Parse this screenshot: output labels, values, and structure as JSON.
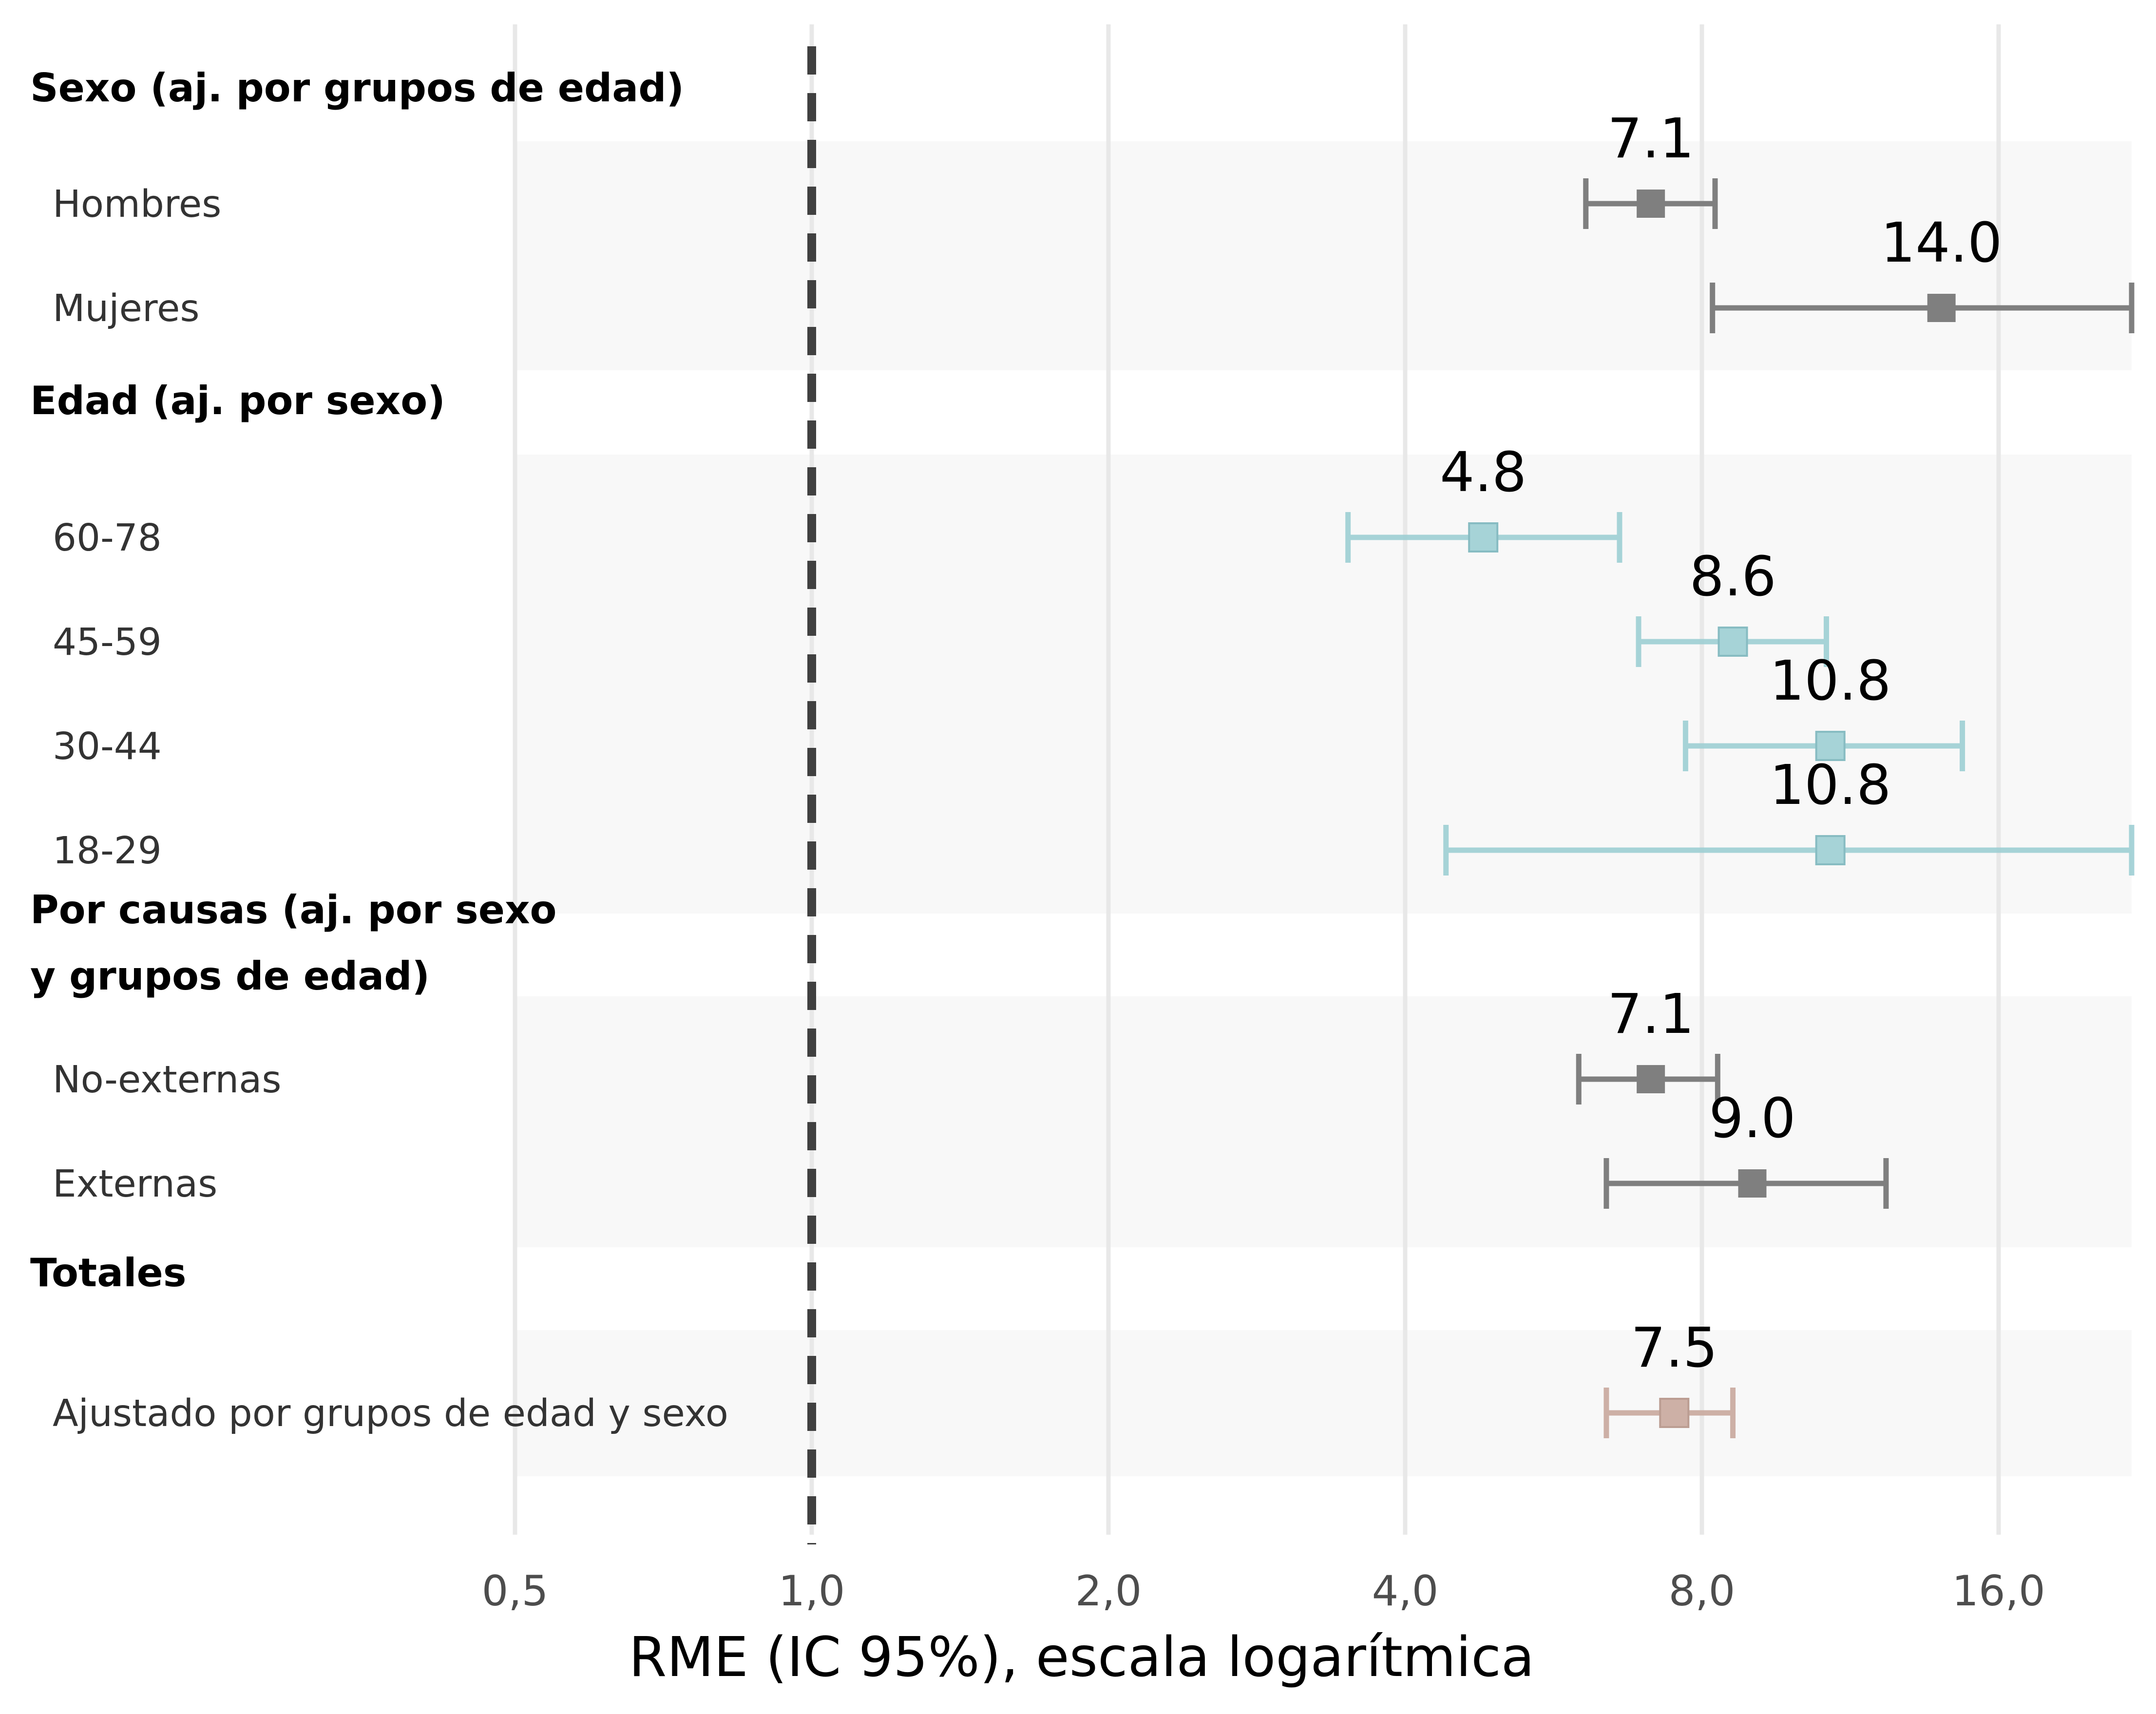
{
  "chart_data": {
    "type": "forest",
    "scale": "log2",
    "xlabel": "RME (IC 95%), escala logarítmica",
    "xlim": [
      0.5,
      23
    ],
    "ticks": [
      {
        "value": 0.5,
        "label": "0,5"
      },
      {
        "value": 1,
        "label": "1,0"
      },
      {
        "value": 2,
        "label": "2,0"
      },
      {
        "value": 4,
        "label": "4,0"
      },
      {
        "value": 8,
        "label": "8,0"
      },
      {
        "value": 16,
        "label": "16,0"
      }
    ],
    "reference_line": 1,
    "colors": {
      "grey": "#7f7f7f",
      "teal": "#9ecfd4",
      "rose": "#c9a99e",
      "band": "#f8f8f8",
      "grid": "#e8e8e8",
      "refline": "#404040"
    },
    "sections": [
      {
        "title_lines": [
          "Sexo (aj. por grupos de edad)"
        ],
        "rows": [
          {
            "label": "Hombres",
            "estimate": 7.1,
            "lower": 6.1,
            "upper": 8.25,
            "value_label": "7.1",
            "color": "grey"
          },
          {
            "label": "Mujeres",
            "estimate": 14.0,
            "lower": 8.2,
            "upper": 23.0,
            "value_label": "14.0",
            "color": "grey"
          }
        ]
      },
      {
        "title_lines": [
          "Edad (aj. por sexo)"
        ],
        "rows": [
          {
            "label": "60-78",
            "estimate": 4.8,
            "lower": 3.5,
            "upper": 6.6,
            "value_label": "4.8",
            "color": "teal"
          },
          {
            "label": "45-59",
            "estimate": 8.6,
            "lower": 6.9,
            "upper": 10.7,
            "value_label": "8.6",
            "color": "teal"
          },
          {
            "label": "30-44",
            "estimate": 10.8,
            "lower": 7.7,
            "upper": 14.7,
            "value_label": "10.8",
            "color": "teal"
          },
          {
            "label": "18-29",
            "estimate": 10.8,
            "lower": 4.4,
            "upper": 23.0,
            "value_label": "10.8",
            "color": "teal"
          }
        ]
      },
      {
        "title_lines": [
          "Por causas (aj. por sexo",
          "y grupos de edad)"
        ],
        "rows": [
          {
            "label": "No-externas",
            "estimate": 7.1,
            "lower": 6.0,
            "upper": 8.3,
            "value_label": "7.1",
            "color": "grey"
          },
          {
            "label": "Externas",
            "estimate": 9.0,
            "lower": 6.4,
            "upper": 12.3,
            "value_label": "9.0",
            "color": "grey"
          }
        ]
      },
      {
        "title_lines": [
          "Totales"
        ],
        "rows": [
          {
            "label": "Ajustado por grupos de edad y sexo",
            "estimate": 7.5,
            "lower": 6.4,
            "upper": 8.6,
            "value_label": "7.5",
            "color": "rose"
          }
        ]
      }
    ]
  }
}
